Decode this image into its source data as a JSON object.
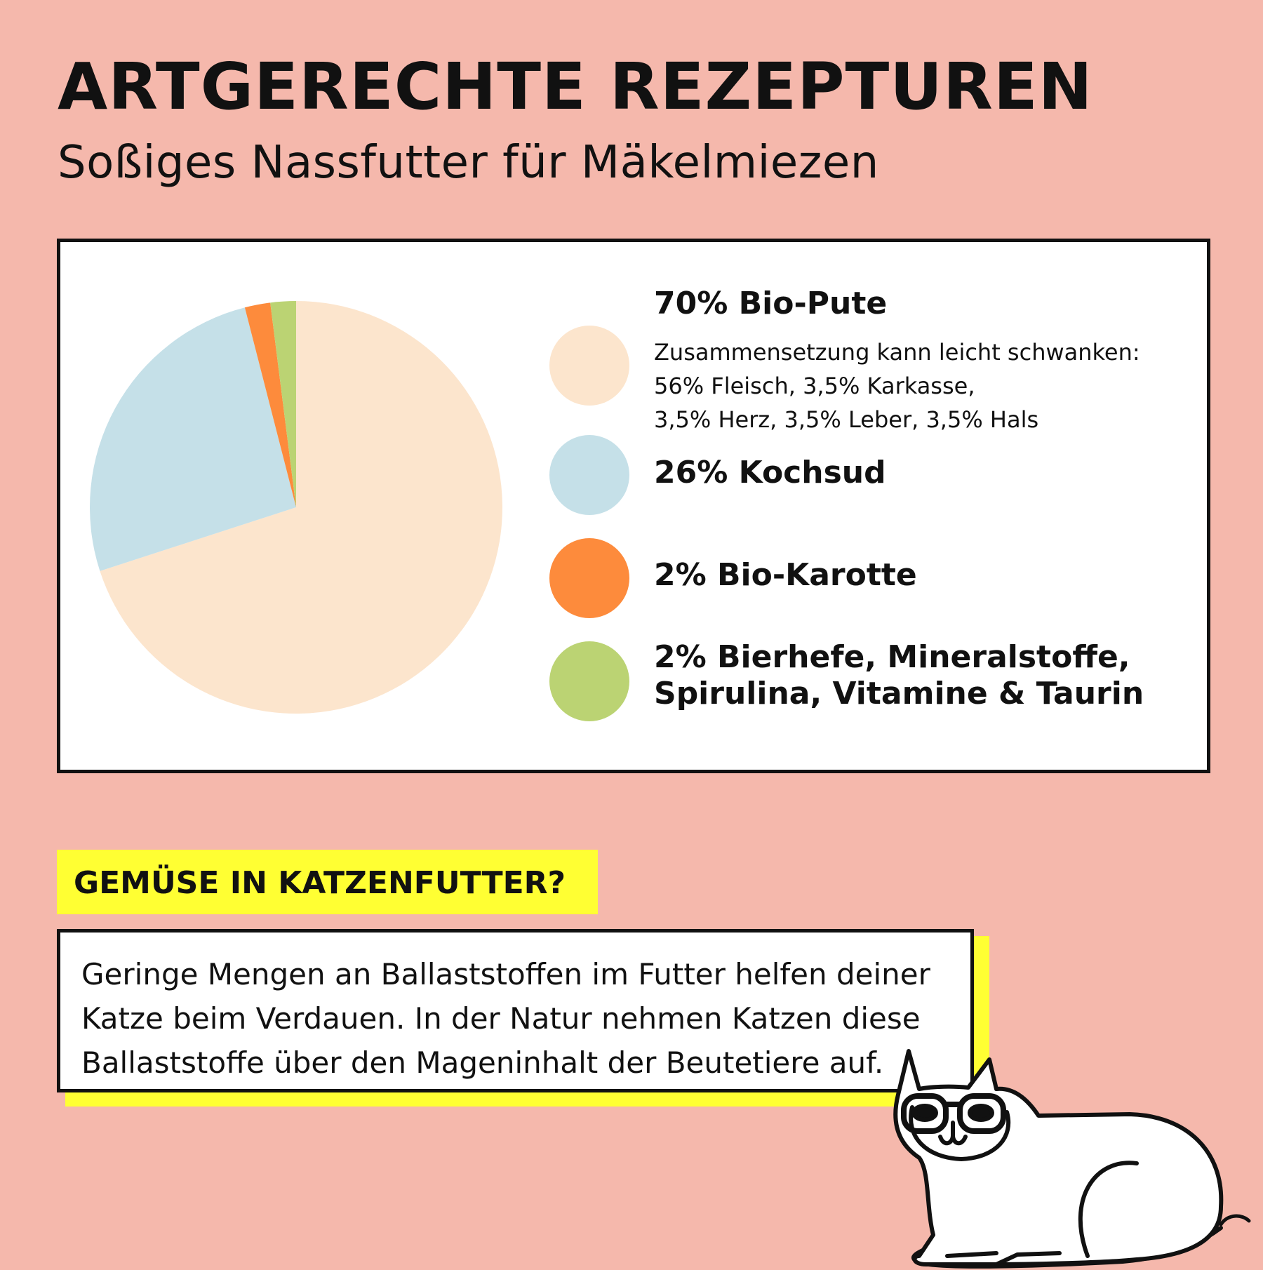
{
  "header": {
    "title": "ARTGERECHTE REZEPTUREN",
    "subtitle": "Soßiges Nassfutter für Mäkelmiezen"
  },
  "chart_data": {
    "type": "pie",
    "start": "12 o'clock, clockwise",
    "series": [
      {
        "label": "70% Bio-Pute",
        "value": 70,
        "color": "#FCE5CD"
      },
      {
        "label": "26% Kochsud",
        "value": 26,
        "color": "#C5E0E8"
      },
      {
        "label": "2% Bio-Karotte",
        "value": 2,
        "color": "#FD8B3C"
      },
      {
        "label": "2% Bierhefe, Mineralstoffe, Spirulina, Vitamine & Taurin",
        "value": 2,
        "color": "#BBD373"
      }
    ],
    "note_lines": [
      "Zusammensetzung kann leicht schwanken:",
      "56% Fleisch, 3,5% Karkasse,",
      "3,5% Herz, 3,5% Leber, 3,5% Hals"
    ],
    "legend_placement": "right"
  },
  "info": {
    "heading": "GEMÜSE IN KATZENFUTTER?",
    "lines": [
      "Geringe Mengen an Ballaststoffen im Futter helfen deiner",
      "Katze beim Verdauen. In der Natur nehmen Katzen diese",
      "Ballaststoffe über den Mageninhalt der Beutetiere auf."
    ],
    "highlight_color": "#FFFF33"
  },
  "illustration": "cat-with-glasses"
}
